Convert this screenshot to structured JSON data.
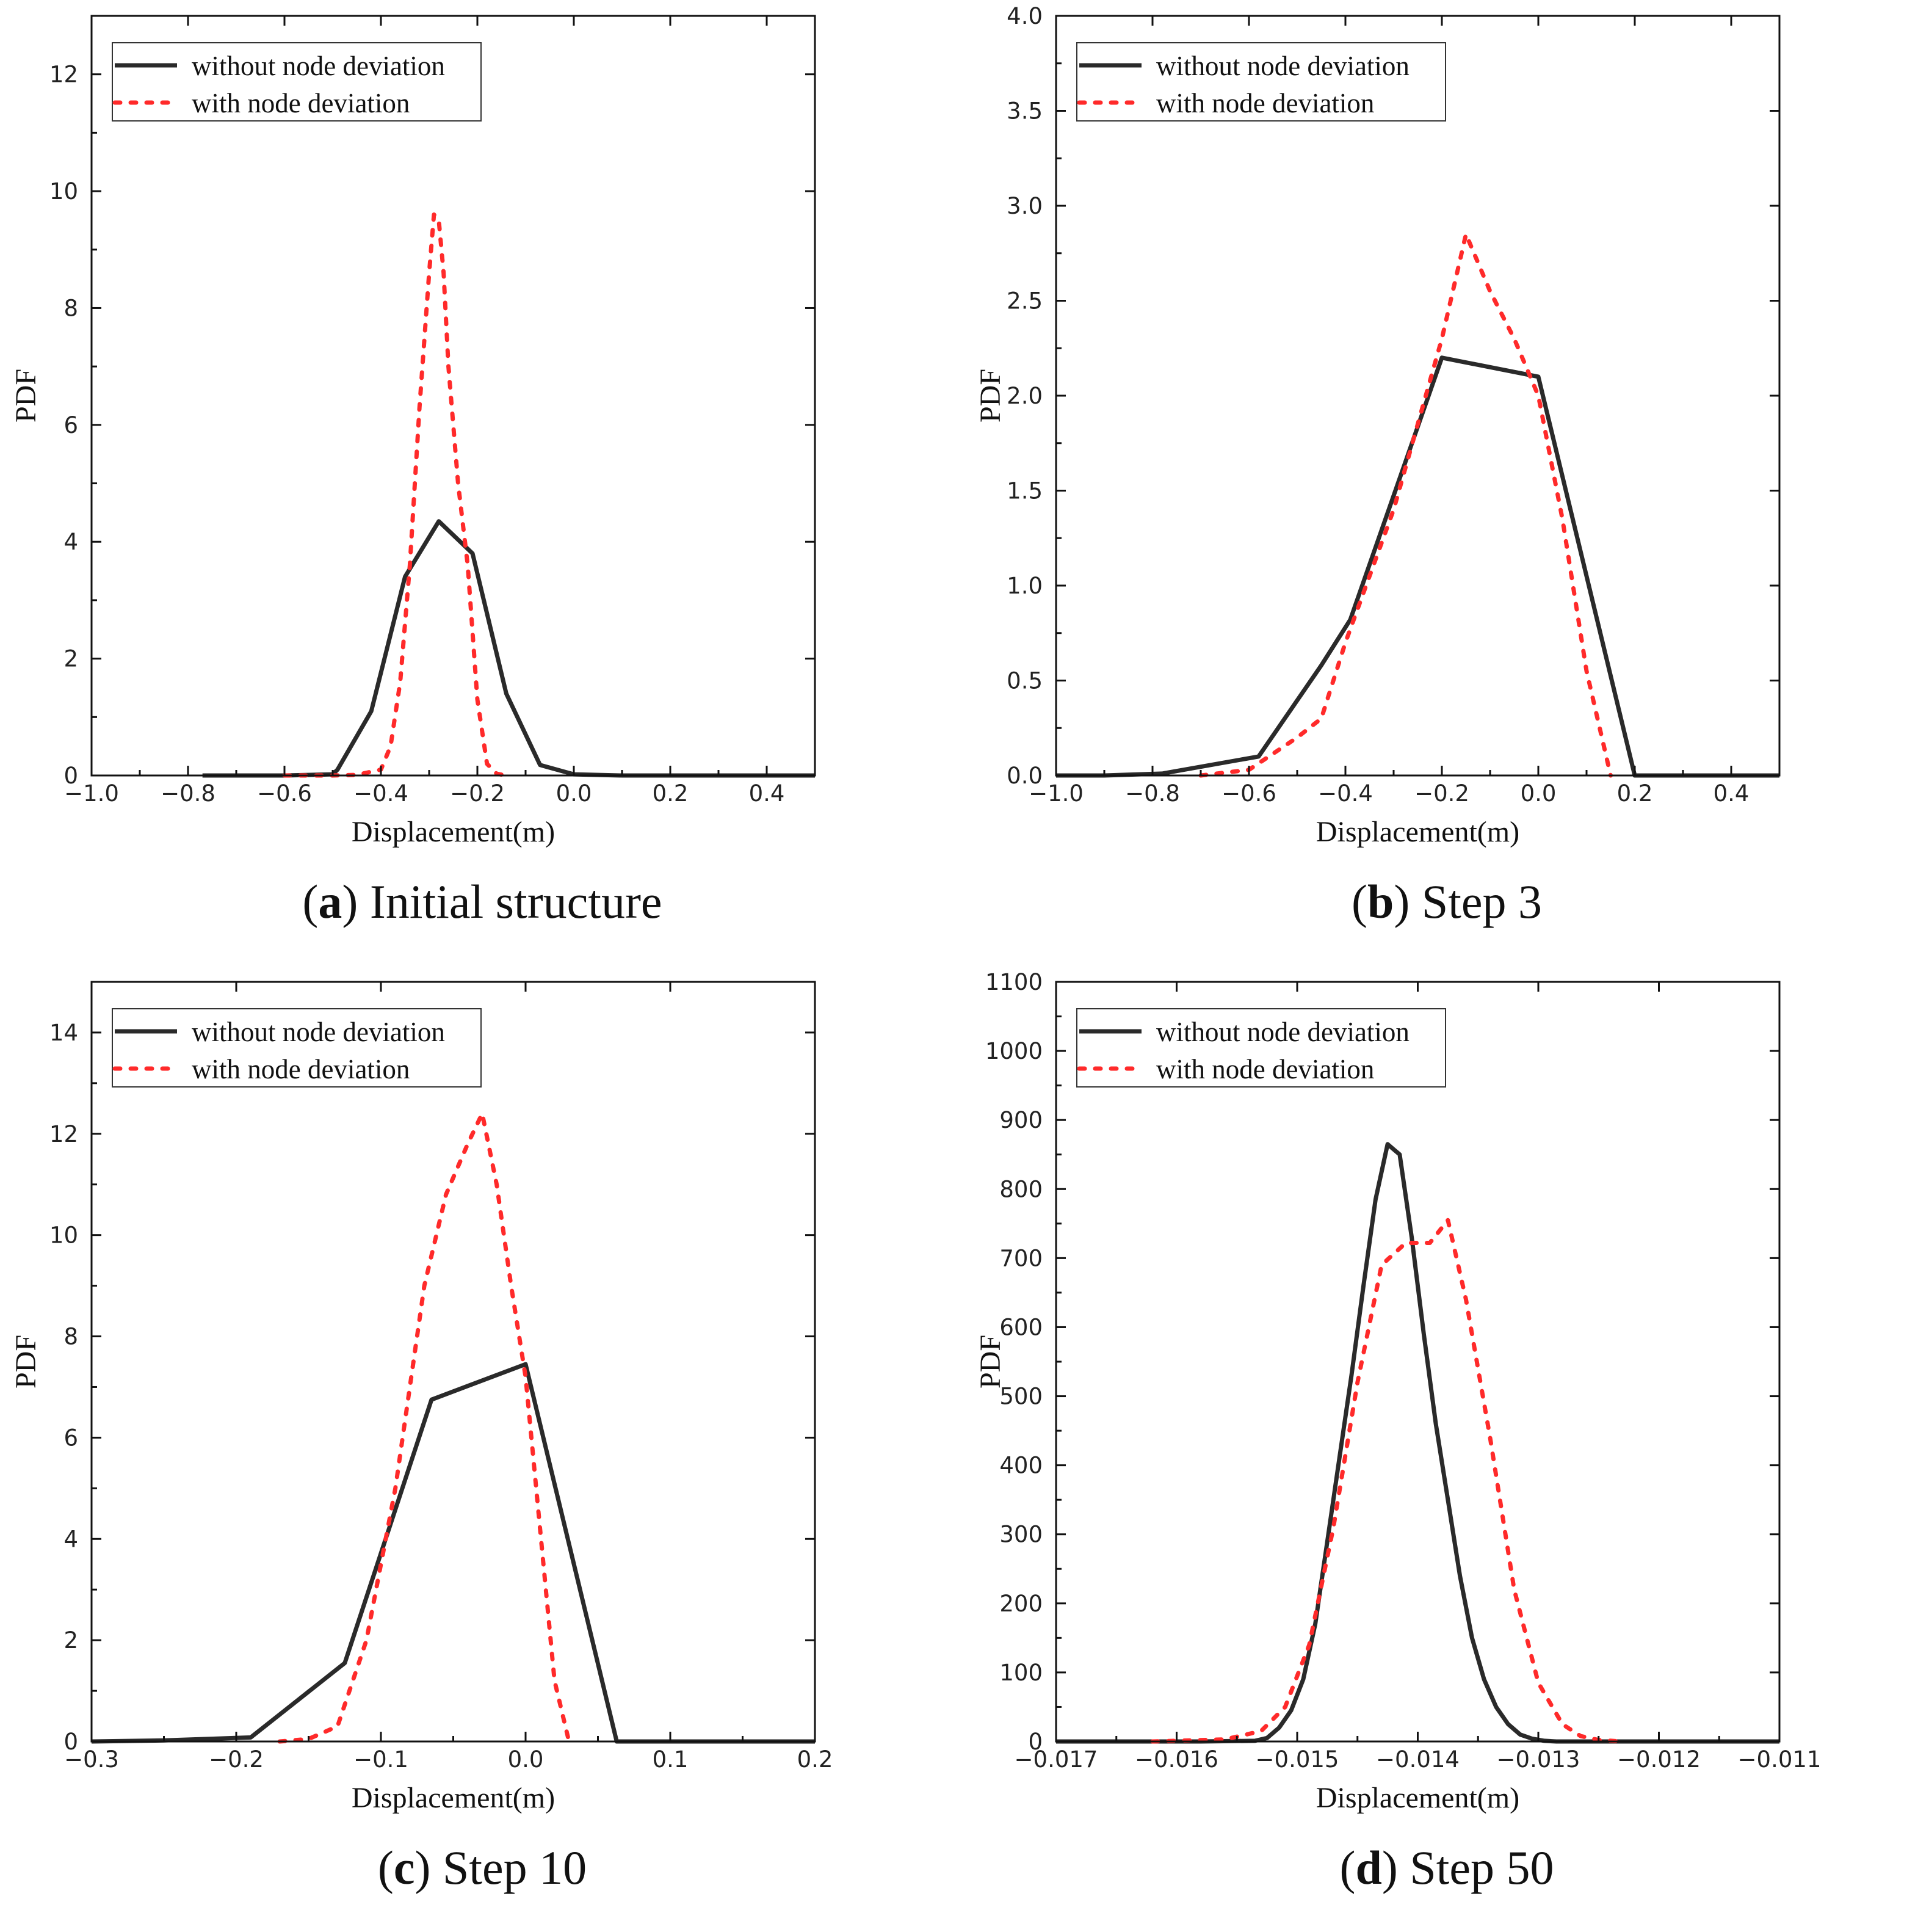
{
  "colors": {
    "solid": "#2a2a2a",
    "dotted": "#ff2a2a",
    "axis": "#111111"
  },
  "legend": {
    "series_solid": "without node deviation",
    "series_dotted": "with node deviation"
  },
  "chart_data": [
    {
      "type": "line",
      "caption_letter": "a",
      "caption_text": "Initial structure",
      "xlabel": "Displacement(m)",
      "ylabel": "PDF",
      "xlim": [
        -1.0,
        0.5
      ],
      "ylim": [
        0,
        13
      ],
      "xticks": [
        -1.0,
        -0.8,
        -0.6,
        -0.4,
        -0.2,
        0.0,
        0.2,
        0.4
      ],
      "xtick_labels": [
        "−1.0",
        "−0.8",
        "−0.6",
        "−0.4",
        "−0.2",
        "0.0",
        "0.2",
        "0.4"
      ],
      "yticks": [
        0,
        2,
        4,
        6,
        8,
        10,
        12
      ],
      "ytick_labels": [
        "0",
        "2",
        "4",
        "6",
        "8",
        "10",
        "12"
      ],
      "series": [
        {
          "name": "without node deviation",
          "style": "solid",
          "x": [
            -0.77,
            -0.7,
            -0.6,
            -0.5,
            -0.49,
            -0.42,
            -0.35,
            -0.28,
            -0.21,
            -0.14,
            -0.07,
            0.0,
            0.1,
            0.3,
            0.5
          ],
          "y": [
            0,
            0,
            0,
            0.02,
            0.1,
            1.1,
            3.4,
            4.35,
            3.8,
            1.4,
            0.18,
            0.02,
            0,
            0,
            0
          ]
        },
        {
          "name": "with node deviation",
          "style": "dotted",
          "x": [
            -0.6,
            -0.5,
            -0.45,
            -0.4,
            -0.38,
            -0.36,
            -0.34,
            -0.32,
            -0.3,
            -0.29,
            -0.28,
            -0.27,
            -0.26,
            -0.24,
            -0.22,
            -0.2,
            -0.18,
            -0.16,
            -0.14
          ],
          "y": [
            0,
            0,
            0.01,
            0.1,
            0.5,
            1.6,
            3.6,
            6.3,
            8.6,
            9.6,
            9.5,
            8.6,
            7.0,
            5.0,
            3.6,
            1.3,
            0.2,
            0.03,
            0
          ]
        }
      ]
    },
    {
      "type": "line",
      "caption_letter": "b",
      "caption_text": "Step 3",
      "xlabel": "Displacement(m)",
      "ylabel": "PDF",
      "xlim": [
        -1.0,
        0.5
      ],
      "ylim": [
        0,
        4.0
      ],
      "xticks": [
        -1.0,
        -0.8,
        -0.6,
        -0.4,
        -0.2,
        0.0,
        0.2,
        0.4
      ],
      "xtick_labels": [
        "−1.0",
        "−0.8",
        "−0.6",
        "−0.4",
        "−0.2",
        "0.0",
        "0.2",
        "0.4"
      ],
      "yticks": [
        0,
        0.5,
        1.0,
        1.5,
        2.0,
        2.5,
        3.0,
        3.5,
        4.0
      ],
      "ytick_labels": [
        "0.0",
        "0.5",
        "1.0",
        "1.5",
        "2.0",
        "2.5",
        "3.0",
        "3.5",
        "4.0"
      ],
      "series": [
        {
          "name": "without node deviation",
          "style": "solid",
          "x": [
            -1.0,
            -0.9,
            -0.78,
            -0.58,
            -0.45,
            -0.39,
            -0.2,
            0.0,
            0.2,
            0.3,
            0.5
          ],
          "y": [
            0,
            0,
            0.01,
            0.1,
            0.58,
            0.82,
            2.2,
            2.1,
            0,
            0,
            0
          ]
        },
        {
          "name": "with node deviation",
          "style": "dotted",
          "x": [
            -0.7,
            -0.6,
            -0.5,
            -0.45,
            -0.4,
            -0.3,
            -0.2,
            -0.15,
            -0.1,
            -0.05,
            0.0,
            0.05,
            0.1,
            0.15
          ],
          "y": [
            0,
            0.03,
            0.2,
            0.3,
            0.7,
            1.4,
            2.3,
            2.85,
            2.55,
            2.3,
            2.0,
            1.35,
            0.55,
            0
          ]
        }
      ]
    },
    {
      "type": "line",
      "caption_letter": "c",
      "caption_text": "Step 10",
      "xlabel": "Displacement(m)",
      "ylabel": "PDF",
      "xlim": [
        -0.3,
        0.2
      ],
      "ylim": [
        0,
        15
      ],
      "xticks": [
        -0.3,
        -0.2,
        -0.1,
        0.0,
        0.1,
        0.2
      ],
      "xtick_labels": [
        "−0.3",
        "−0.2",
        "−0.1",
        "0.0",
        "0.1",
        "0.2"
      ],
      "yticks": [
        0,
        2,
        4,
        6,
        8,
        10,
        12,
        14
      ],
      "ytick_labels": [
        "0",
        "2",
        "4",
        "6",
        "8",
        "10",
        "12",
        "14"
      ],
      "series": [
        {
          "name": "without node deviation",
          "style": "solid",
          "x": [
            -0.3,
            -0.25,
            -0.19,
            -0.125,
            -0.065,
            0.0,
            0.063,
            0.1,
            0.2
          ],
          "y": [
            0,
            0.02,
            0.08,
            1.55,
            6.75,
            7.45,
            0,
            0,
            0
          ]
        },
        {
          "name": "with node deviation",
          "style": "dotted",
          "x": [
            -0.17,
            -0.15,
            -0.13,
            -0.11,
            -0.09,
            -0.07,
            -0.055,
            -0.04,
            -0.03,
            -0.02,
            -0.01,
            0.0,
            0.01,
            0.02,
            0.03
          ],
          "y": [
            0,
            0.05,
            0.3,
            2.0,
            5.0,
            9.0,
            10.8,
            11.8,
            12.4,
            11.0,
            9.0,
            7.2,
            4.2,
            1.2,
            0
          ]
        }
      ]
    },
    {
      "type": "line",
      "caption_letter": "d",
      "caption_text": "Step 50",
      "xlabel": "Displacement(m)",
      "ylabel": "PDF",
      "xlim": [
        -0.017,
        -0.011
      ],
      "ylim": [
        0,
        1100
      ],
      "xticks": [
        -0.017,
        -0.016,
        -0.015,
        -0.014,
        -0.013,
        -0.012,
        -0.011
      ],
      "xtick_labels": [
        "−0.017",
        "−0.016",
        "−0.015",
        "−0.014",
        "−0.013",
        "−0.012",
        "−0.011"
      ],
      "yticks": [
        0,
        100,
        200,
        300,
        400,
        500,
        600,
        700,
        800,
        900,
        1000,
        1100
      ],
      "ytick_labels": [
        "0",
        "100",
        "200",
        "300",
        "400",
        "500",
        "600",
        "700",
        "800",
        "900",
        "1000",
        "1100"
      ],
      "series": [
        {
          "name": "without node deviation",
          "style": "solid",
          "x": [
            -0.017,
            -0.0158,
            -0.01535,
            -0.01525,
            -0.01515,
            -0.01505,
            -0.01495,
            -0.01485,
            -0.01475,
            -0.01465,
            -0.01455,
            -0.01445,
            -0.01435,
            -0.01425,
            -0.01415,
            -0.01405,
            -0.01395,
            -0.01385,
            -0.01375,
            -0.01365,
            -0.01355,
            -0.01345,
            -0.01335,
            -0.01325,
            -0.01315,
            -0.01305,
            -0.01295,
            -0.01285,
            -0.01275,
            -0.01265,
            -0.01255,
            -0.0124,
            -0.0122,
            -0.011
          ],
          "y": [
            0,
            0,
            1,
            5,
            20,
            45,
            90,
            170,
            290,
            410,
            530,
            660,
            785,
            865,
            850,
            730,
            590,
            460,
            350,
            240,
            150,
            90,
            50,
            25,
            10,
            4,
            1,
            0,
            0,
            0,
            0,
            0,
            0,
            0
          ]
        },
        {
          "name": "with node deviation",
          "style": "dotted",
          "x": [
            -0.0162,
            -0.0156,
            -0.0153,
            -0.0151,
            -0.0149,
            -0.0147,
            -0.0145,
            -0.0143,
            -0.0141,
            -0.0139,
            -0.01375,
            -0.0136,
            -0.0134,
            -0.0132,
            -0.013,
            -0.0128,
            -0.01265,
            -0.0125,
            -0.0123
          ],
          "y": [
            0,
            3,
            15,
            50,
            140,
            310,
            520,
            690,
            722,
            722,
            755,
            640,
            440,
            220,
            85,
            25,
            8,
            2,
            0
          ]
        }
      ]
    }
  ]
}
